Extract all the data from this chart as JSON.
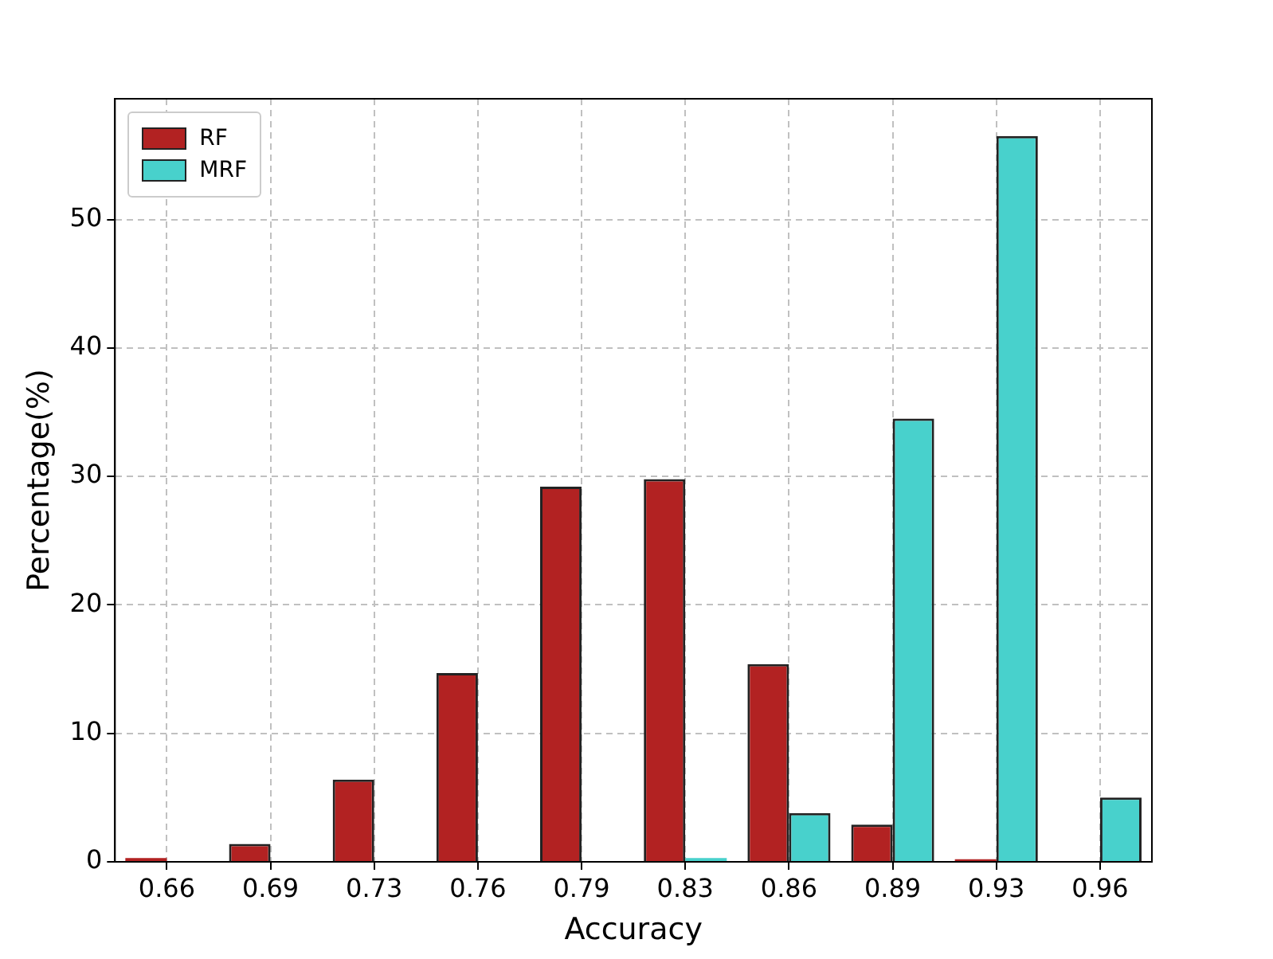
{
  "chart_data": {
    "type": "bar",
    "xlabel": "Accuracy",
    "ylabel": "Percentage(%)",
    "categories": [
      "0.66",
      "0.69",
      "0.73",
      "0.76",
      "0.79",
      "0.83",
      "0.86",
      "0.89",
      "0.93",
      "0.96"
    ],
    "series": [
      {
        "name": "RF",
        "color": "#b22222",
        "values": [
          0.3,
          1.4,
          6.4,
          14.7,
          29.2,
          29.8,
          15.4,
          2.9,
          0.2,
          0
        ]
      },
      {
        "name": "MRF",
        "color": "#48d1cc",
        "values": [
          0,
          0,
          0,
          0,
          0,
          0.3,
          3.8,
          34.5,
          56.5,
          5.0
        ]
      }
    ],
    "ylim": [
      0,
      59.4
    ],
    "yticks": [
      0,
      10,
      20,
      30,
      40,
      50
    ],
    "grid": true,
    "legend": "top left"
  }
}
